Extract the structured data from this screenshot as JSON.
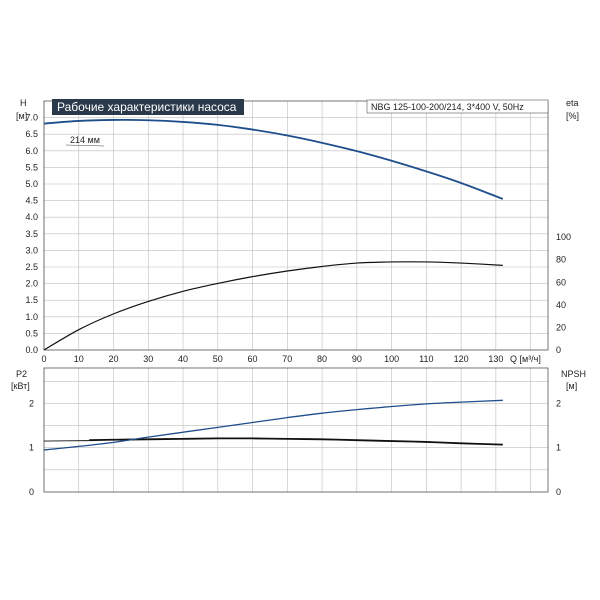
{
  "chart_data": [
    {
      "type": "line",
      "title": "Рабочие характеристики насоса",
      "subtitle": "NBG 125-100-200/214, 3*400 V, 50Hz",
      "left_axis_label": [
        "H",
        "[м]"
      ],
      "right_axis_label": [
        "eta",
        "[%]"
      ],
      "xlabel": "Q [м³/ч]",
      "xlim": [
        0,
        145
      ],
      "xticks": [
        "0",
        "10",
        "20",
        "30",
        "40",
        "50",
        "60",
        "70",
        "80",
        "90",
        "100",
        "110",
        "120",
        "130"
      ],
      "ylim": [
        0,
        7.5
      ],
      "yticks": [
        "0.0",
        "0.5",
        "1.0",
        "1.5",
        "2.0",
        "2.5",
        "3.0",
        "3.5",
        "4.0",
        "4.5",
        "5.0",
        "5.5",
        "6.0",
        "6.5",
        "7.0"
      ],
      "y2ticks": [
        "0",
        "20",
        "40",
        "60",
        "80",
        "100"
      ],
      "grid": true,
      "annotation": "214 мм",
      "series": [
        {
          "axis": "left",
          "color": "#1f4e8c",
          "x": [
            0,
            10,
            20,
            30,
            40,
            50,
            60,
            70,
            80,
            90,
            100,
            110,
            120,
            132
          ],
          "values": [
            6.82,
            6.9,
            6.93,
            6.92,
            6.87,
            6.78,
            6.64,
            6.46,
            6.24,
            5.99,
            5.7,
            5.38,
            5.03,
            4.55
          ]
        },
        {
          "axis": "right",
          "color": "#111111",
          "x": [
            0,
            10,
            20,
            30,
            40,
            50,
            60,
            70,
            80,
            90,
            100,
            110,
            120,
            132
          ],
          "values": [
            0,
            18,
            32,
            43,
            52,
            59,
            65,
            70,
            74,
            77,
            78,
            78,
            77,
            75
          ]
        }
      ]
    },
    {
      "type": "line",
      "left_axis_label": [
        "P2",
        "[кВт]"
      ],
      "right_axis_label": [
        "NPSH",
        "[м]"
      ],
      "xlim": [
        0,
        145
      ],
      "ylim": [
        0,
        2.8
      ],
      "yticks": [
        "0",
        "1",
        "2"
      ],
      "y2ticks": [
        "0",
        "1",
        "2"
      ],
      "grid": true,
      "series": [
        {
          "axis": "left",
          "color": "#111111",
          "x": [
            13,
            20,
            30,
            40,
            50,
            60,
            70,
            80,
            90,
            100,
            110,
            120,
            132
          ],
          "values": [
            1.17,
            1.18,
            1.19,
            1.2,
            1.21,
            1.21,
            1.2,
            1.19,
            1.17,
            1.15,
            1.13,
            1.1,
            1.07
          ]
        },
        {
          "axis": "right",
          "color": "#1f4e8c",
          "x": [
            0,
            10,
            20,
            30,
            40,
            50,
            60,
            70,
            80,
            90,
            100,
            110,
            120,
            132
          ],
          "values": [
            0.95,
            1.03,
            1.12,
            1.24,
            1.35,
            1.46,
            1.57,
            1.68,
            1.78,
            1.86,
            1.93,
            1.99,
            2.03,
            2.07
          ]
        },
        {
          "axis": "left",
          "color": "#111111",
          "x": [
            0,
            13
          ],
          "values": [
            1.15,
            1.16
          ]
        }
      ]
    }
  ]
}
